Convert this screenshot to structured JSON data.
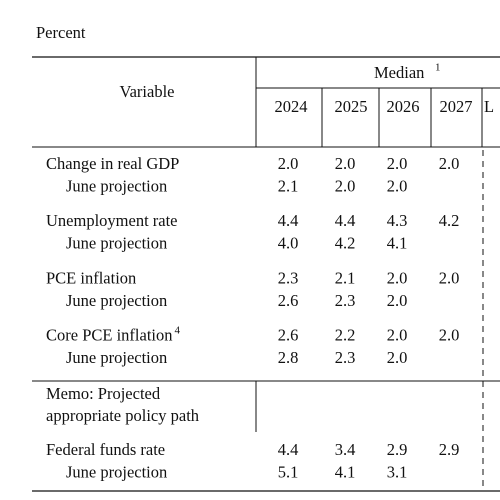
{
  "unit": "Percent",
  "header": {
    "variable": "Variable",
    "median": "Median",
    "median_note": "1",
    "years": [
      "2024",
      "2025",
      "2026",
      "2027",
      "L"
    ]
  },
  "rows": [
    {
      "label": "Change in real GDP",
      "values": [
        "2.0",
        "2.0",
        "2.0",
        "2.0"
      ]
    },
    {
      "label": "June projection",
      "values": [
        "2.1",
        "2.0",
        "2.0"
      ]
    },
    {
      "label": "Unemployment rate",
      "values": [
        "4.4",
        "4.4",
        "4.3",
        "4.2"
      ]
    },
    {
      "label": "June projection",
      "values": [
        "4.0",
        "4.2",
        "4.1"
      ]
    },
    {
      "label": "PCE inflation",
      "values": [
        "2.3",
        "2.1",
        "2.0",
        "2.0"
      ]
    },
    {
      "label": "June projection",
      "values": [
        "2.6",
        "2.3",
        "2.0"
      ]
    },
    {
      "label": "Core PCE inflation",
      "note": "4",
      "values": [
        "2.6",
        "2.2",
        "2.0",
        "2.0"
      ]
    },
    {
      "label": "June projection",
      "values": [
        "2.8",
        "2.3",
        "2.0"
      ]
    }
  ],
  "memo": [
    "Memo: Projected",
    "appropriate policy path"
  ],
  "policy_rows": [
    {
      "label": "Federal funds rate",
      "values": [
        "4.4",
        "3.4",
        "2.9",
        "2.9"
      ]
    },
    {
      "label": "June projection",
      "values": [
        "5.1",
        "4.1",
        "3.1"
      ]
    }
  ]
}
